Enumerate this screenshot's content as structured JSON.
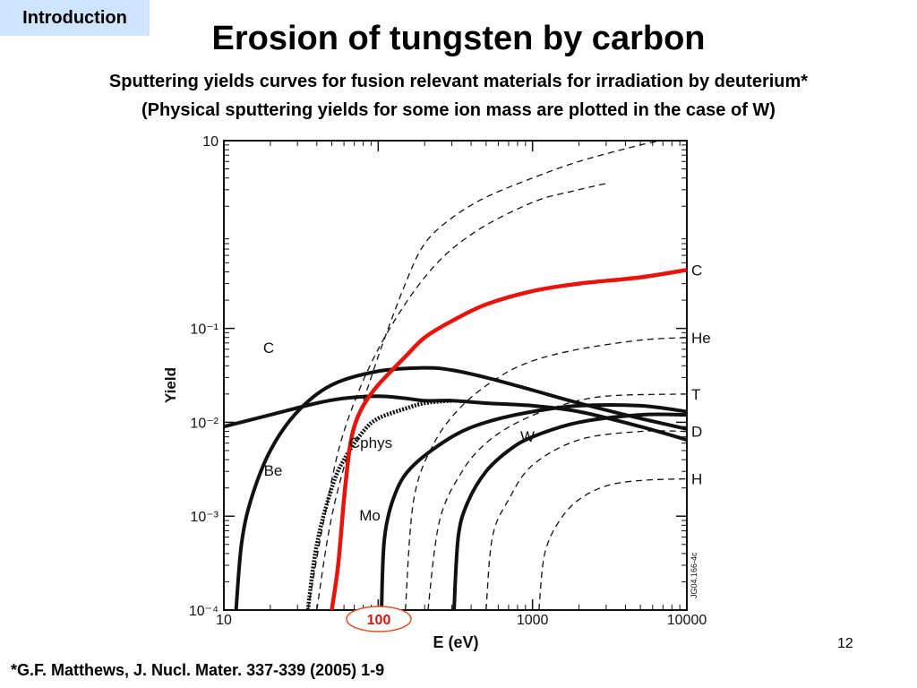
{
  "slide": {
    "section_tag": "Introduction",
    "title": "Erosion of tungsten by carbon",
    "subtitle_1": "Sputtering yields curves for fusion relevant materials for irradiation by deuterium*",
    "subtitle_2": "(Physical sputtering yields for some ion mass are plotted in the case of W)",
    "page_number": "12",
    "footnote": "*G.F. Matthews, J. Nucl. Mater. 337-339 (2005) 1-9",
    "figure_code": "JG04.166-4c",
    "highlight_label": "100"
  },
  "chart_data": {
    "type": "line",
    "xlabel": "E (eV)",
    "ylabel": "Yield",
    "x_scale": "log",
    "y_scale": "log",
    "xlim": [
      10,
      10000
    ],
    "ylim": [
      0.0001,
      10
    ],
    "x_ticks": [
      {
        "value": 10,
        "label": "10"
      },
      {
        "value": 100,
        "label": "100"
      },
      {
        "value": 1000,
        "label": "1000"
      },
      {
        "value": 10000,
        "label": "10000"
      }
    ],
    "y_ticks": [
      {
        "value": 10,
        "label": "10"
      },
      {
        "value": 0.1,
        "label": "10⁻¹"
      },
      {
        "value": 0.01,
        "label": "10⁻²"
      },
      {
        "value": 0.001,
        "label": "10⁻³"
      },
      {
        "value": 0.0001,
        "label": "10⁻⁴"
      }
    ],
    "highlight_x": 100,
    "series": [
      {
        "name": "C",
        "style": "red",
        "color": "#e8140a",
        "label_at": "right",
        "points": [
          [
            50,
            0.0001
          ],
          [
            55,
            0.0003
          ],
          [
            60,
            0.0015
          ],
          [
            65,
            0.005
          ],
          [
            70,
            0.009
          ],
          [
            80,
            0.015
          ],
          [
            100,
            0.025
          ],
          [
            150,
            0.05
          ],
          [
            200,
            0.08
          ],
          [
            300,
            0.12
          ],
          [
            500,
            0.18
          ],
          [
            1000,
            0.25
          ],
          [
            2000,
            0.3
          ],
          [
            5000,
            0.35
          ],
          [
            10000,
            0.42
          ]
        ]
      },
      {
        "name": "Cphys",
        "style": "dotted",
        "color": "#111111",
        "label_at": "inline",
        "points": [
          [
            35,
            0.0001
          ],
          [
            40,
            0.0005
          ],
          [
            50,
            0.002
          ],
          [
            60,
            0.004
          ],
          [
            80,
            0.008
          ],
          [
            100,
            0.011
          ],
          [
            150,
            0.014
          ],
          [
            200,
            0.016
          ],
          [
            300,
            0.017
          ]
        ]
      },
      {
        "name": "C",
        "style": "solid",
        "color": "#111111",
        "label_at": "inline",
        "points": [
          [
            10,
            0.009
          ],
          [
            20,
            0.012
          ],
          [
            40,
            0.016
          ],
          [
            60,
            0.018
          ],
          [
            100,
            0.019
          ],
          [
            150,
            0.018
          ],
          [
            200,
            0.017
          ],
          [
            300,
            0.017
          ],
          [
            500,
            0.016
          ],
          [
            1000,
            0.015
          ],
          [
            2000,
            0.013
          ],
          [
            5000,
            0.009
          ],
          [
            10000,
            0.0065
          ]
        ]
      },
      {
        "name": "Be",
        "style": "solid",
        "color": "#111111",
        "label_at": "inline",
        "points": [
          [
            12,
            0.0001
          ],
          [
            13,
            0.0005
          ],
          [
            15,
            0.0015
          ],
          [
            20,
            0.005
          ],
          [
            30,
            0.013
          ],
          [
            50,
            0.025
          ],
          [
            100,
            0.035
          ],
          [
            200,
            0.038
          ],
          [
            300,
            0.036
          ],
          [
            500,
            0.03
          ],
          [
            1000,
            0.022
          ],
          [
            2000,
            0.016
          ],
          [
            5000,
            0.011
          ],
          [
            10000,
            0.0085
          ]
        ]
      },
      {
        "name": "Mo",
        "style": "solid",
        "color": "#111111",
        "label_at": "inline",
        "points": [
          [
            105,
            0.0001
          ],
          [
            110,
            0.0006
          ],
          [
            130,
            0.0018
          ],
          [
            170,
            0.0035
          ],
          [
            300,
            0.007
          ],
          [
            500,
            0.01
          ],
          [
            1000,
            0.013
          ],
          [
            2000,
            0.015
          ],
          [
            5000,
            0.015
          ],
          [
            10000,
            0.013
          ]
        ]
      },
      {
        "name": "W",
        "style": "solid",
        "color": "#111111",
        "label_at": "inline",
        "points": [
          [
            310,
            0.0001
          ],
          [
            330,
            0.0006
          ],
          [
            380,
            0.0014
          ],
          [
            500,
            0.003
          ],
          [
            700,
            0.005
          ],
          [
            1000,
            0.007
          ],
          [
            2000,
            0.01
          ],
          [
            5000,
            0.012
          ],
          [
            10000,
            0.012
          ]
        ]
      },
      {
        "name": "",
        "style": "dashed",
        "color": "#111111",
        "label_at": "none",
        "points": [
          [
            40,
            0.0001
          ],
          [
            50,
            0.001
          ],
          [
            70,
            0.008
          ],
          [
            100,
            0.05
          ],
          [
            150,
            0.3
          ],
          [
            200,
            0.8
          ],
          [
            300,
            1.5
          ],
          [
            500,
            2.5
          ],
          [
            1000,
            4
          ],
          [
            2000,
            6
          ],
          [
            5000,
            9
          ],
          [
            7000,
            10
          ]
        ]
      },
      {
        "name": "C",
        "style": "dashed",
        "color": "#111111",
        "label_at": "none",
        "points": [
          [
            35,
            0.0001
          ],
          [
            45,
            0.001
          ],
          [
            60,
            0.008
          ],
          [
            100,
            0.06
          ],
          [
            200,
            0.35
          ],
          [
            400,
            1
          ],
          [
            1000,
            2.2
          ],
          [
            2000,
            3
          ],
          [
            3000,
            3.5
          ]
        ]
      },
      {
        "name": "He",
        "style": "dashed",
        "color": "#111111",
        "label_at": "right",
        "points": [
          [
            150,
            0.0001
          ],
          [
            170,
            0.0015
          ],
          [
            230,
            0.006
          ],
          [
            350,
            0.015
          ],
          [
            600,
            0.03
          ],
          [
            1000,
            0.045
          ],
          [
            2000,
            0.06
          ],
          [
            5000,
            0.075
          ],
          [
            10000,
            0.08
          ]
        ]
      },
      {
        "name": "T",
        "style": "dashed",
        "color": "#111111",
        "label_at": "right",
        "points": [
          [
            210,
            0.0001
          ],
          [
            250,
            0.0009
          ],
          [
            350,
            0.003
          ],
          [
            500,
            0.006
          ],
          [
            800,
            0.01
          ],
          [
            1500,
            0.015
          ],
          [
            3000,
            0.019
          ],
          [
            10000,
            0.02
          ]
        ]
      },
      {
        "name": "D",
        "style": "dashed",
        "color": "#111111",
        "label_at": "right",
        "points": [
          [
            500,
            0.0001
          ],
          [
            550,
            0.0006
          ],
          [
            700,
            0.0015
          ],
          [
            1000,
            0.0035
          ],
          [
            2000,
            0.0065
          ],
          [
            5000,
            0.008
          ],
          [
            10000,
            0.008
          ]
        ]
      },
      {
        "name": "H",
        "style": "dashed",
        "color": "#111111",
        "label_at": "right",
        "points": [
          [
            1100,
            0.0001
          ],
          [
            1200,
            0.0004
          ],
          [
            1500,
            0.0009
          ],
          [
            2000,
            0.0015
          ],
          [
            3000,
            0.0021
          ],
          [
            5000,
            0.0024
          ],
          [
            10000,
            0.0025
          ]
        ]
      }
    ]
  }
}
